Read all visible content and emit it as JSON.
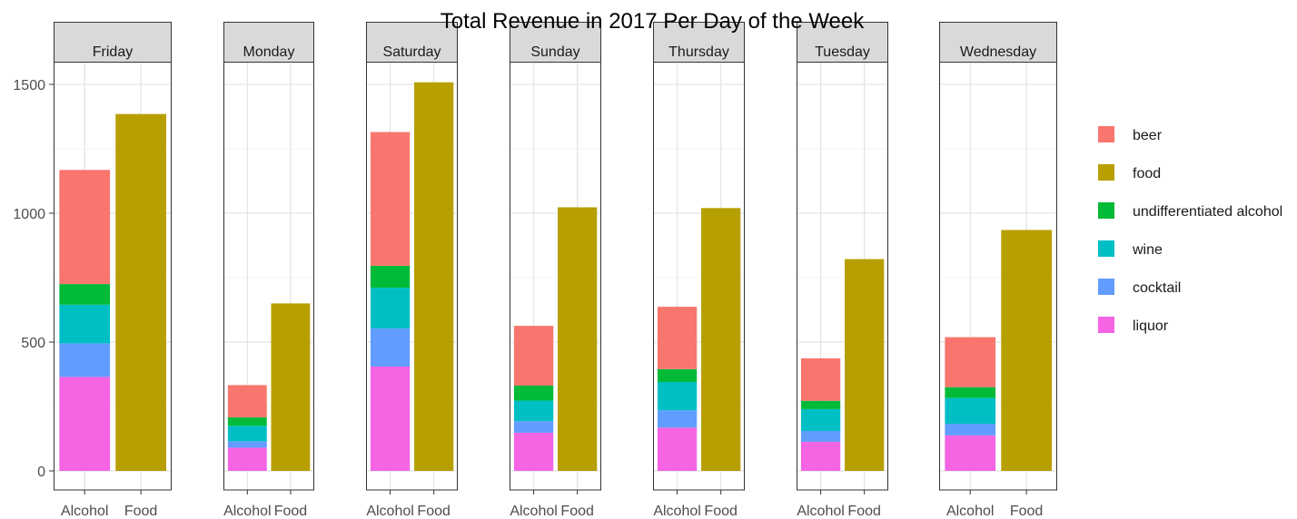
{
  "chart_data": {
    "type": "bar",
    "title": "Total Revenue in 2017 Per Day of the Week",
    "xlabel": "",
    "ylabel": "",
    "ylim": [
      0,
      1580
    ],
    "yticks": [
      0,
      500,
      1000,
      1500
    ],
    "grid": true,
    "legend_position": "right",
    "categories": [
      "Alcohol",
      "Food"
    ],
    "legend": [
      {
        "name": "beer",
        "color": "#F8766D"
      },
      {
        "name": "food",
        "color": "#B79F00"
      },
      {
        "name": "undifferentiated alcohol",
        "color": "#00BA38"
      },
      {
        "name": "wine",
        "color": "#00BFC4"
      },
      {
        "name": "cocktail",
        "color": "#619CFF"
      },
      {
        "name": "liquor",
        "color": "#F564E3"
      }
    ],
    "panels": [
      {
        "name": "Friday",
        "alcohol": {
          "liquor": 365,
          "cocktail": 130,
          "wine": 150,
          "undifferentiated alcohol": 80,
          "beer": 443
        },
        "food": 1385
      },
      {
        "name": "Monday",
        "alcohol": {
          "liquor": 90,
          "cocktail": 25,
          "wine": 60,
          "undifferentiated alcohol": 33,
          "beer": 125
        },
        "food": 650
      },
      {
        "name": "Saturday",
        "alcohol": {
          "liquor": 405,
          "cocktail": 148,
          "wine": 158,
          "undifferentiated alcohol": 85,
          "beer": 519
        },
        "food": 1508
      },
      {
        "name": "Sunday",
        "alcohol": {
          "liquor": 148,
          "cocktail": 45,
          "wine": 80,
          "undifferentiated alcohol": 58,
          "beer": 232
        },
        "food": 1023
      },
      {
        "name": "Thursday",
        "alcohol": {
          "liquor": 168,
          "cocktail": 67,
          "wine": 110,
          "undifferentiated alcohol": 50,
          "beer": 242
        },
        "food": 1020
      },
      {
        "name": "Tuesday",
        "alcohol": {
          "liquor": 113,
          "cocktail": 42,
          "wine": 85,
          "undifferentiated alcohol": 32,
          "beer": 165
        },
        "food": 822
      },
      {
        "name": "Wednesday",
        "alcohol": {
          "liquor": 138,
          "cocktail": 45,
          "wine": 100,
          "undifferentiated alcohol": 42,
          "beer": 194
        },
        "food": 935
      }
    ]
  }
}
